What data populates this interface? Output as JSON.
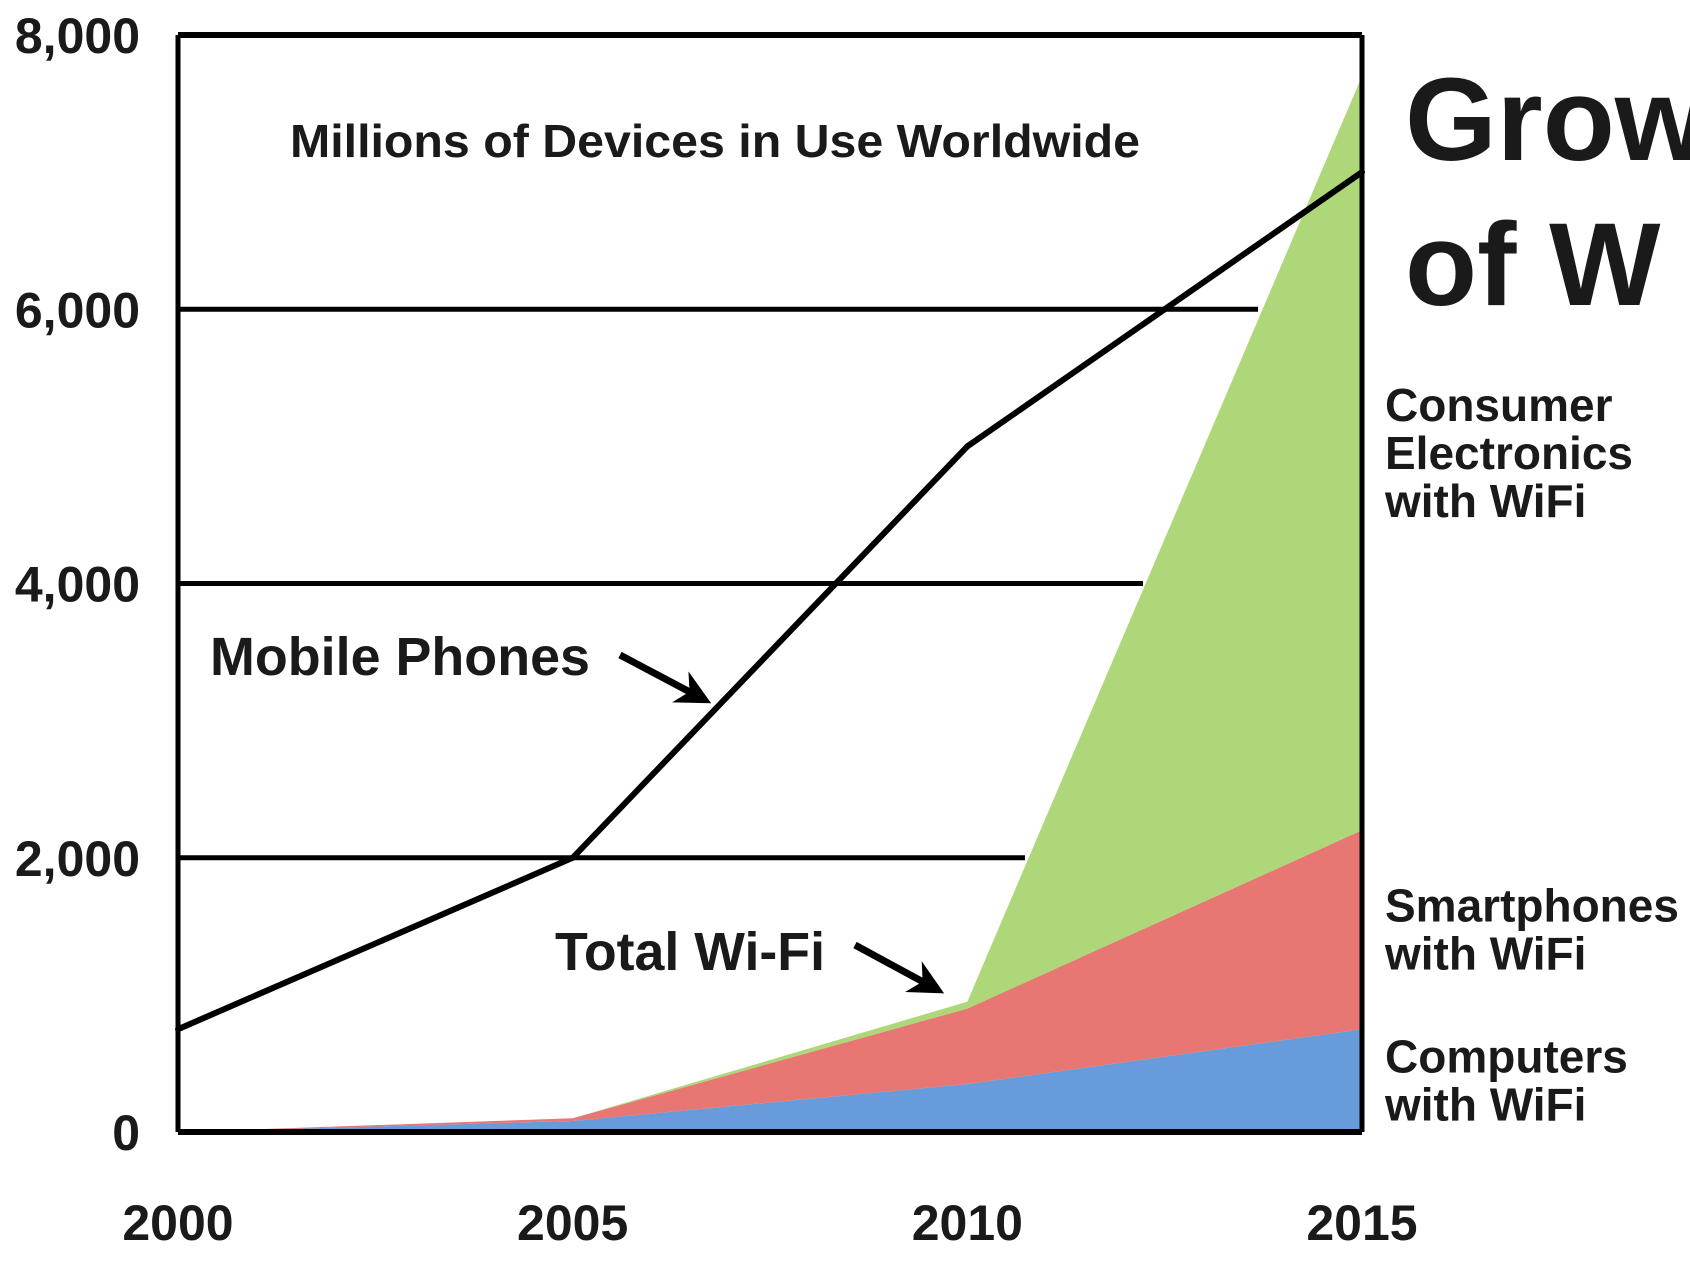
{
  "page": {
    "title_lines": [
      "Grow",
      "of W"
    ]
  },
  "chart_data": {
    "type": "area",
    "title": "Millions of Devices in Use Worldwide",
    "xlabel": "",
    "ylabel": "",
    "xlim": [
      2000,
      2015
    ],
    "ylim": [
      0,
      8000
    ],
    "x_ticks": [
      "2000",
      "2005",
      "2010",
      "2015"
    ],
    "y_ticks": [
      "0",
      "2,000",
      "4,000",
      "6,000",
      "8,000"
    ],
    "grid": true,
    "stacked_area_series": [
      {
        "name": "Computers with WiFi",
        "label_lines": [
          "Computers",
          "with WiFi"
        ],
        "color": "#5b93d6",
        "x": [
          2000,
          2005,
          2010,
          2015
        ],
        "values": [
          0,
          80,
          350,
          750
        ]
      },
      {
        "name": "Smartphones with WiFi",
        "label_lines": [
          "Smartphones",
          "with WiFi"
        ],
        "color": "#e66a66",
        "x": [
          2000,
          2005,
          2010,
          2015
        ],
        "values": [
          0,
          20,
          550,
          1450
        ]
      },
      {
        "name": "Consumer Electronics with WiFi",
        "label_lines": [
          "Consumer",
          "Electronics",
          "with WiFi"
        ],
        "color": "#a6d46c",
        "x": [
          2000,
          2005,
          2010,
          2015
        ],
        "values": [
          0,
          0,
          50,
          5500
        ]
      }
    ],
    "line_series": [
      {
        "name": "Mobile Phones",
        "color": "#000000",
        "x": [
          2000,
          2005,
          2010,
          2015
        ],
        "values": [
          750,
          2000,
          5000,
          7000
        ]
      }
    ],
    "annotations": [
      {
        "text": "Mobile Phones",
        "points_to": "Mobile Phones"
      },
      {
        "text": "Total Wi-Fi",
        "points_to": "Total Wi-Fi"
      }
    ]
  }
}
